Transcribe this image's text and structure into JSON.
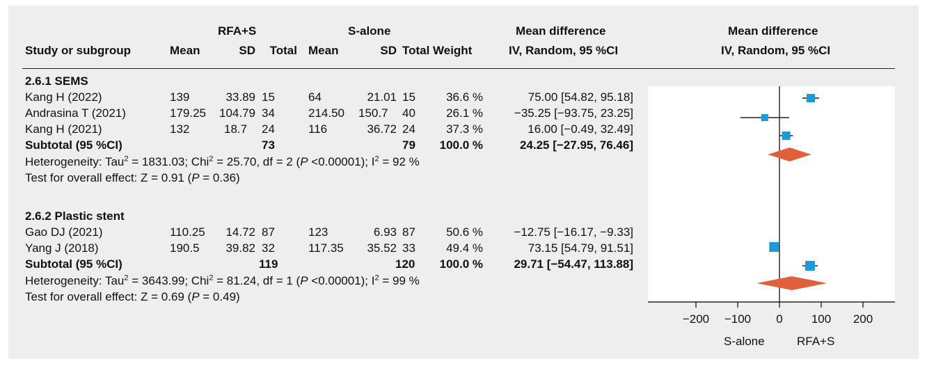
{
  "header": {
    "group_rfa": "RFA+S",
    "group_s": "S-alone",
    "md_title_table": "Mean difference",
    "md_title_plot": "Mean difference",
    "col_study": "Study or subgroup",
    "col_mean_rfa": "Mean",
    "col_sd_rfa": "SD",
    "col_total_rfa": "Total",
    "col_mean_s": "Mean",
    "col_sd_s": "SD",
    "col_total_s": "Total",
    "col_weight": "Weight",
    "col_md_table": "IV, Random, 95 %CI",
    "col_md_plot": "IV, Random, 95 %CI"
  },
  "subgroups": [
    {
      "name": "2.6.1 SEMS",
      "studies": [
        {
          "study": "Kang H (2022)",
          "mean_rfa": "139",
          "sd_rfa": "33.89",
          "total_rfa": "15",
          "mean_s": "64",
          "sd_s": "21.01",
          "total_s": "15",
          "weight": "36.6 %",
          "md_text": "75.00 [54.82, 95.18]"
        },
        {
          "study": "Andrasina T (2021)",
          "mean_rfa": "179.25",
          "sd_rfa": "104.79",
          "total_rfa": "34",
          "mean_s": "214.50",
          "sd_s": "150.7",
          "total_s": "40",
          "weight": "26.1 %",
          "md_text": "−35.25 [−93.75, 23.25]"
        },
        {
          "study": "Kang H (2021)",
          "mean_rfa": "132",
          "sd_rfa": "18.7",
          "total_rfa": "24",
          "mean_s": "116",
          "sd_s": "36.72",
          "total_s": "24",
          "weight": "37.3 %",
          "md_text": "16.00 [−0.49, 32.49]"
        }
      ],
      "subtotal": {
        "label": "Subtotal (95 %CI)",
        "total_rfa": "73",
        "total_s": "79",
        "weight": "100.0 %",
        "md_text": "24.25 [−27.95, 76.46]"
      },
      "het": {
        "a": "Heterogeneity: Tau",
        "b": " = 1831.03; Chi",
        "c": " = 25.70, df = 2 (",
        "p": "P",
        "d": " <0.00001); I",
        "e": " = 92 %"
      },
      "overall": {
        "a": "Test for overall effect: Z = 0.91 (",
        "p": "P",
        "b": " = 0.36)"
      }
    },
    {
      "name": "2.6.2 Plastic stent",
      "studies": [
        {
          "study": "Gao DJ (2021)",
          "mean_rfa": "110.25",
          "sd_rfa": "14.72",
          "total_rfa": "87",
          "mean_s": "123",
          "sd_s": "6.93",
          "total_s": "87",
          "weight": "50.6 %",
          "md_text": "−12.75 [−16.17, −9.33]"
        },
        {
          "study": "Yang J (2018)",
          "mean_rfa": "190.5",
          "sd_rfa": "39.82",
          "total_rfa": "32",
          "mean_s": "117.35",
          "sd_s": "35.52",
          "total_s": "33",
          "weight": "49.4 %",
          "md_text": "73.15 [54.79, 91.51]"
        }
      ],
      "subtotal": {
        "label": "Subtotal (95 %CI)",
        "total_rfa": "119",
        "total_s": "120",
        "weight": "100.0 %",
        "md_text": "29.71 [−54.47, 113.88]"
      },
      "het": {
        "a": "Heterogeneity: Tau",
        "b": " = 3643.99; Chi",
        "c": " = 81.24, df = 1 (",
        "p": "P",
        "d": " <0.00001); I",
        "e": " = 99 %"
      },
      "overall": {
        "a": "Test for overall effect: Z = 0.69 (",
        "p": "P",
        "b": " = 0.49)"
      }
    }
  ],
  "sup2": "2",
  "axis": {
    "left_label": "S-alone",
    "right_label": "RFA+S"
  },
  "colors": {
    "square": "#1a9ad6",
    "diamond": "#e0603a",
    "line": "#222222",
    "panel_bg": "#eeeeee"
  },
  "chart_data": {
    "type": "forest",
    "xlim": [
      -250,
      250
    ],
    "xticks": [
      -200,
      -100,
      0,
      100,
      200
    ],
    "xtick_labels": [
      "−200",
      "−100",
      "0",
      "100",
      "200"
    ],
    "studies": [
      {
        "name": "Kang H (2022)",
        "md": 75.0,
        "lo": 54.82,
        "hi": 95.18,
        "weight": 36.6
      },
      {
        "name": "Andrasina T (2021)",
        "md": -35.25,
        "lo": -93.75,
        "hi": 23.25,
        "weight": 26.1
      },
      {
        "name": "Kang H (2021)",
        "md": 16.0,
        "lo": -0.49,
        "hi": 32.49,
        "weight": 37.3
      },
      {
        "name": "Gao DJ (2021)",
        "md": -12.75,
        "lo": -16.17,
        "hi": -9.33,
        "weight": 50.6
      },
      {
        "name": "Yang J (2018)",
        "md": 73.15,
        "lo": 54.79,
        "hi": 91.51,
        "weight": 49.4
      }
    ],
    "subtotals": [
      {
        "name": "Subtotal (95 %CI) 2.6.1 SEMS",
        "md": 24.25,
        "lo": -27.95,
        "hi": 76.46
      },
      {
        "name": "Subtotal (95 %CI) 2.6.2 Plastic stent",
        "md": 29.71,
        "lo": -54.47,
        "hi": 113.88
      }
    ]
  }
}
